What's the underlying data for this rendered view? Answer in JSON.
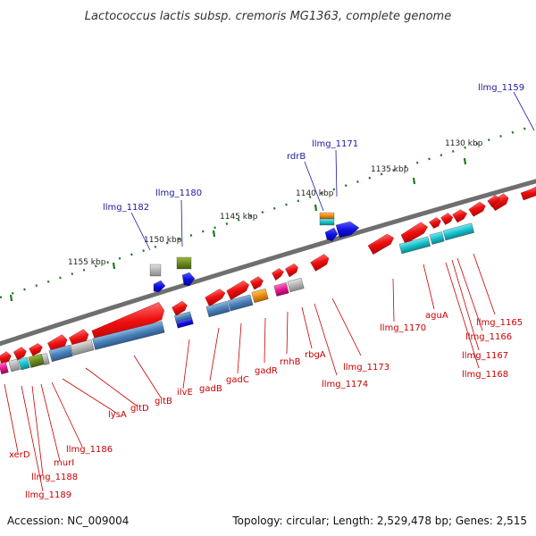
{
  "title": "Lactococcus lactis subsp. cremoris MG1363, complete genome",
  "footer": {
    "accession": "Accession: NC_009004",
    "topology": "Topology: circular; Length: 2,529,478 bp; Genes: 2,515"
  },
  "scale_labels": [
    "1155 kbp",
    "1150 kbp",
    "1145 kbp",
    "1140 kbp",
    "1135 kbp",
    "1130 kbp"
  ],
  "top_labels": [
    "llmg_1159",
    "llmg_1171",
    "rdrB",
    "llmg_1180",
    "llmg_1182"
  ],
  "bottom_labels": [
    "aguA",
    "llmg_1165",
    "llmg_1166",
    "llmg_1167",
    "llmg_1168",
    "llmg_1170",
    "llmg_1173",
    "llmg_1174",
    "rbgA",
    "rnhB",
    "gadR",
    "gadC",
    "gadB",
    "ilvE",
    "gltB",
    "gltD",
    "lysA",
    "llmg_1186",
    "murI",
    "llmg_1188",
    "xerD",
    "llmg_1189"
  ],
  "colors": {
    "red_gene": "#e01010",
    "steel_gene": "#4a86c0",
    "cyan_gene": "#18c0cc",
    "olive_gene": "#6b8a1e",
    "blue_gene": "#1010e0",
    "grey_gene": "#b8b8b8",
    "orange_gene": "#f08c10",
    "magenta_gene": "#e81890",
    "backbone": "#777777",
    "tick": "#1c7a1c"
  }
}
